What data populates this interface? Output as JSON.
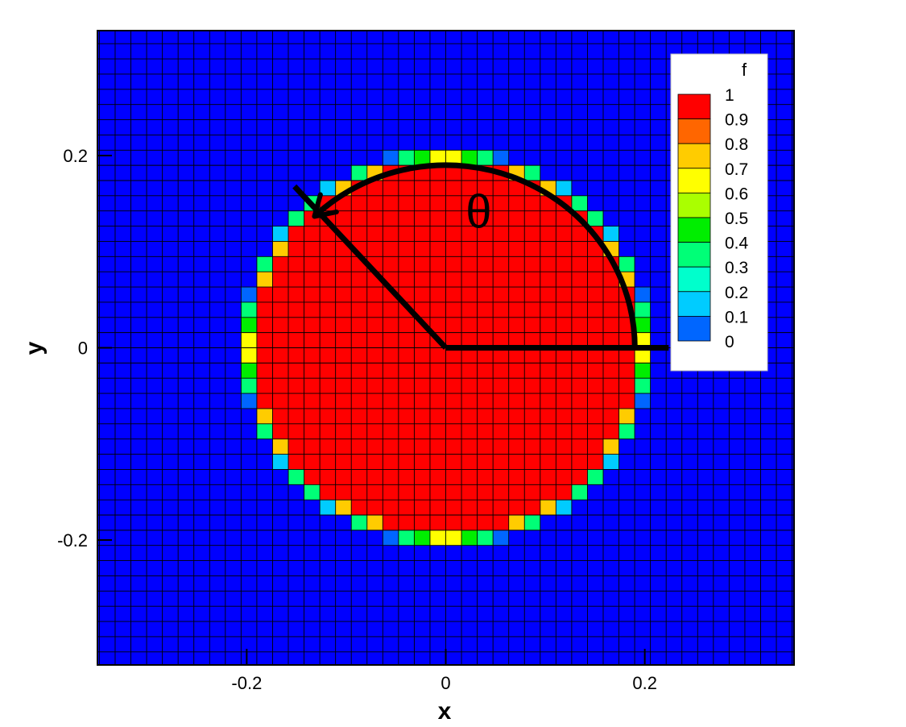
{
  "chart_data": {
    "type": "heatmap",
    "xlabel": "x",
    "ylabel": "y",
    "xlim": [
      -0.35,
      0.35
    ],
    "ylim": [
      -0.33,
      0.33
    ],
    "x_ticks": [
      -0.2,
      0,
      0.2
    ],
    "y_ticks": [
      -0.2,
      0,
      0.2
    ],
    "x_tick_labels": [
      "-0.2",
      "0",
      "0.2"
    ],
    "y_tick_labels": [
      "-0.2",
      "0",
      "0.2"
    ],
    "grid": true,
    "grid_cell_size": 0.01582,
    "field": {
      "name": "f",
      "description_shape": "volume fraction of a circle of radius 0.2 centered at (0, 0) sampled on the mesh",
      "circle_center": [
        0,
        0
      ],
      "circle_radius": 0.2,
      "range": [
        0,
        1
      ]
    },
    "legend": {
      "title": "f",
      "position": "top-right",
      "levels": [
        "1",
        "0.9",
        "0.8",
        "0.7",
        "0.6",
        "0.5",
        "0.4",
        "0.3",
        "0.2",
        "0.1",
        "0"
      ],
      "colors": [
        "#ff0000",
        "#ff6600",
        "#ffcc00",
        "#ffff00",
        "#aaff00",
        "#00ee00",
        "#00ff77",
        "#00ffcc",
        "#00ccff",
        "#0066ff",
        "#0000ff"
      ]
    },
    "annotations": {
      "angle_symbol": "θ",
      "reference_ray": {
        "from": [
          0,
          0
        ],
        "to": [
          0.224,
          0
        ]
      },
      "rotated_ray": {
        "from": [
          0,
          0
        ],
        "to": [
          -0.152,
          0.168
        ]
      },
      "arc": {
        "center": [
          0,
          0
        ],
        "radius": 0.19,
        "from_deg": 0,
        "to_deg": 134
      }
    }
  },
  "colors": {
    "background_field": "#0000ff",
    "grid_line": "#000000",
    "annotation": "#000000"
  }
}
